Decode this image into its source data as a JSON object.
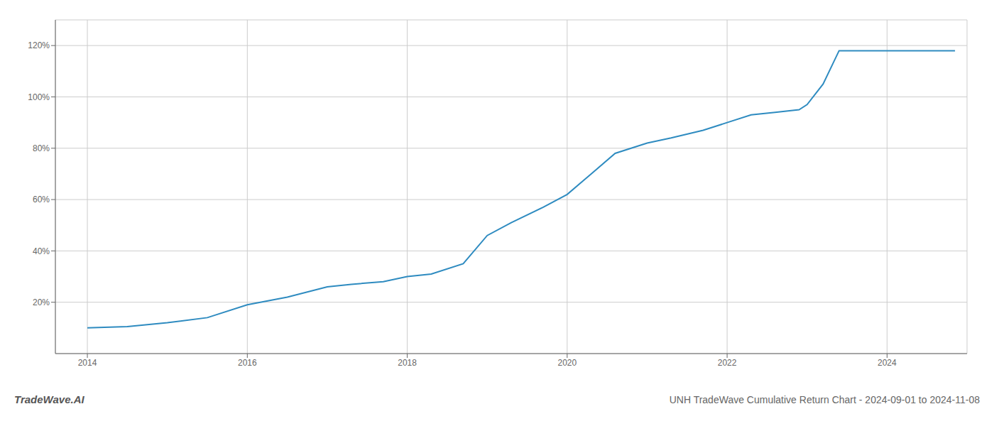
{
  "chart_data": {
    "type": "line",
    "title": "UNH TradeWave Cumulative Return Chart - 2024-09-01 to 2024-11-08",
    "annotations": [
      "TradeWave.AI"
    ],
    "x": [
      2014.0,
      2014.5,
      2015.0,
      2015.5,
      2016.0,
      2016.5,
      2017.0,
      2017.3,
      2017.7,
      2018.0,
      2018.3,
      2018.7,
      2019.0,
      2019.3,
      2019.7,
      2020.0,
      2020.3,
      2020.6,
      2021.0,
      2021.3,
      2021.7,
      2022.0,
      2022.3,
      2022.6,
      2022.9,
      2023.0,
      2023.2,
      2023.4,
      2023.7,
      2024.0,
      2024.5,
      2024.85
    ],
    "values": [
      10,
      10.5,
      12,
      14,
      19,
      22,
      26,
      27,
      28,
      30,
      31,
      35,
      46,
      51,
      57,
      62,
      70,
      78,
      82,
      84,
      87,
      90,
      93,
      94,
      95,
      97,
      105,
      118,
      118,
      118,
      118,
      118
    ],
    "color": "#2e8bc0",
    "xlim": [
      2013.6,
      2025.0
    ],
    "ylim": [
      0,
      130
    ],
    "xticks": [
      2014,
      2016,
      2018,
      2020,
      2022,
      2024
    ],
    "yticks": [
      {
        "value": 20,
        "label": "20%"
      },
      {
        "value": 40,
        "label": "40%"
      },
      {
        "value": 60,
        "label": "60%"
      },
      {
        "value": 80,
        "label": "80%"
      },
      {
        "value": 100,
        "label": "100%"
      },
      {
        "value": 120,
        "label": "120%"
      }
    ],
    "grid": true
  }
}
